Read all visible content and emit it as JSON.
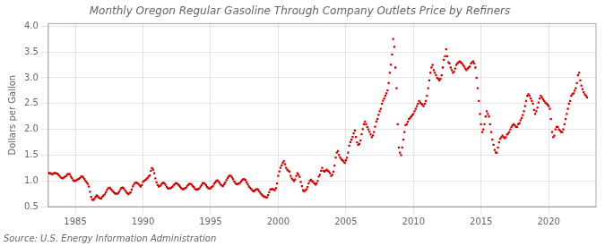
{
  "chart_data": {
    "type": "scatter",
    "title": "Monthly Oregon Regular Gasoline Through Company Outlets Price by Refiners",
    "ylabel": "Dollars per Gallon",
    "source": "Source: U.S. Energy Information Administration",
    "color": "#CC0000",
    "marker": "square",
    "grid": true,
    "xlim": [
      1983.0,
      2023.5
    ],
    "ylim": [
      0.5,
      4.05
    ],
    "xticks": [
      1985,
      1990,
      1995,
      2000,
      2005,
      2010,
      2015,
      2020
    ],
    "yticks": [
      0.5,
      {
        "value": 1.0,
        "label": "1.0"
      },
      1.5,
      {
        "value": 2.0,
        "label": "2.0"
      },
      2.5,
      {
        "value": 3.0,
        "label": "3.0"
      },
      3.5,
      {
        "value": 4.0,
        "label": "4.0"
      }
    ],
    "x": [
      1983,
      1983.0833333333333,
      1983.1666666666667,
      1983.25,
      1983.3333333333333,
      1983.4166666666667,
      1983.5,
      1983.5833333333333,
      1983.6666666666667,
      1983.75,
      1983.8333333333333,
      1983.9166666666667,
      1984,
      1984.0833333333333,
      1984.1666666666667,
      1984.25,
      1984.3333333333333,
      1984.4166666666667,
      1984.5,
      1984.5833333333333,
      1984.6666666666667,
      1984.75,
      1984.8333333333333,
      1984.9166666666667,
      1985,
      1985.0833333333333,
      1985.1666666666667,
      1985.25,
      1985.3333333333333,
      1985.4166666666667,
      1985.5,
      1985.5833333333333,
      1985.6666666666667,
      1985.75,
      1985.8333333333333,
      1985.9166666666667,
      1986,
      1986.0833333333333,
      1986.1666666666667,
      1986.25,
      1986.3333333333333,
      1986.4166666666667,
      1986.5,
      1986.5833333333333,
      1986.6666666666667,
      1986.75,
      1986.8333333333333,
      1986.9166666666667,
      1987,
      1987.0833333333333,
      1987.1666666666667,
      1987.25,
      1987.3333333333333,
      1987.4166666666667,
      1987.5,
      1987.5833333333333,
      1987.6666666666667,
      1987.75,
      1987.8333333333333,
      1987.9166666666667,
      1988,
      1988.0833333333333,
      1988.1666666666667,
      1988.25,
      1988.3333333333333,
      1988.4166666666667,
      1988.5,
      1988.5833333333333,
      1988.6666666666667,
      1988.75,
      1988.8333333333333,
      1988.9166666666667,
      1989,
      1989.0833333333333,
      1989.1666666666667,
      1989.25,
      1989.3333333333333,
      1989.4166666666667,
      1989.5,
      1989.5833333333333,
      1989.6666666666667,
      1989.75,
      1989.8333333333333,
      1989.9166666666667,
      1990,
      1990.0833333333333,
      1990.1666666666667,
      1990.25,
      1990.3333333333333,
      1990.4166666666667,
      1990.5,
      1990.5833333333333,
      1990.6666666666667,
      1990.75,
      1990.8333333333333,
      1990.9166666666667,
      1991,
      1991.0833333333333,
      1991.1666666666667,
      1991.25,
      1991.3333333333333,
      1991.4166666666667,
      1991.5,
      1991.5833333333333,
      1991.6666666666667,
      1991.75,
      1991.8333333333333,
      1991.9166666666667,
      1992,
      1992.0833333333333,
      1992.1666666666667,
      1992.25,
      1992.3333333333333,
      1992.4166666666667,
      1992.5,
      1992.5833333333333,
      1992.6666666666667,
      1992.75,
      1992.8333333333333,
      1992.9166666666667,
      1993,
      1993.0833333333333,
      1993.1666666666667,
      1993.25,
      1993.3333333333333,
      1993.4166666666667,
      1993.5,
      1993.5833333333333,
      1993.6666666666667,
      1993.75,
      1993.8333333333333,
      1993.9166666666667,
      1994,
      1994.0833333333333,
      1994.1666666666667,
      1994.25,
      1994.3333333333333,
      1994.4166666666667,
      1994.5,
      1994.5833333333333,
      1994.6666666666667,
      1994.75,
      1994.8333333333333,
      1994.9166666666667,
      1995,
      1995.0833333333333,
      1995.1666666666667,
      1995.25,
      1995.3333333333333,
      1995.4166666666667,
      1995.5,
      1995.5833333333333,
      1995.6666666666667,
      1995.75,
      1995.8333333333333,
      1995.9166666666667,
      1996,
      1996.0833333333333,
      1996.1666666666667,
      1996.25,
      1996.3333333333333,
      1996.4166666666667,
      1996.5,
      1996.5833333333333,
      1996.6666666666667,
      1996.75,
      1996.8333333333333,
      1996.9166666666667,
      1997,
      1997.0833333333333,
      1997.1666666666667,
      1997.25,
      1997.3333333333333,
      1997.4166666666667,
      1997.5,
      1997.5833333333333,
      1997.6666666666667,
      1997.75,
      1997.8333333333333,
      1997.9166666666667,
      1998,
      1998.0833333333333,
      1998.1666666666667,
      1998.25,
      1998.3333333333333,
      1998.4166666666667,
      1998.5,
      1998.5833333333333,
      1998.6666666666667,
      1998.75,
      1998.8333333333333,
      1998.9166666666667,
      1999,
      1999.0833333333333,
      1999.1666666666667,
      1999.25,
      1999.3333333333333,
      1999.4166666666667,
      1999.5,
      1999.5833333333333,
      1999.6666666666667,
      1999.75,
      1999.8333333333333,
      1999.9166666666667,
      2000,
      2000.0833333333333,
      2000.1666666666667,
      2000.25,
      2000.3333333333333,
      2000.4166666666667,
      2000.5,
      2000.5833333333333,
      2000.6666666666667,
      2000.75,
      2000.8333333333333,
      2000.9166666666667,
      2001,
      2001.0833333333333,
      2001.1666666666667,
      2001.25,
      2001.3333333333333,
      2001.4166666666667,
      2001.5,
      2001.5833333333333,
      2001.6666666666667,
      2001.75,
      2001.8333333333333,
      2001.9166666666667,
      2002,
      2002.0833333333333,
      2002.1666666666667,
      2002.25,
      2002.3333333333333,
      2002.4166666666667,
      2002.5,
      2002.5833333333333,
      2002.6666666666667,
      2002.75,
      2002.8333333333333,
      2002.9166666666667,
      2003,
      2003.0833333333333,
      2003.1666666666667,
      2003.25,
      2003.3333333333333,
      2003.4166666666667,
      2003.5,
      2003.5833333333333,
      2003.6666666666667,
      2003.75,
      2003.8333333333333,
      2003.9166666666667,
      2004,
      2004.0833333333333,
      2004.1666666666667,
      2004.25,
      2004.3333333333333,
      2004.4166666666667,
      2004.5,
      2004.5833333333333,
      2004.6666666666667,
      2004.75,
      2004.8333333333333,
      2004.9166666666667,
      2005,
      2005.0833333333333,
      2005.1666666666667,
      2005.25,
      2005.3333333333333,
      2005.4166666666667,
      2005.5,
      2005.5833333333333,
      2005.6666666666667,
      2005.75,
      2005.8333333333333,
      2005.9166666666667,
      2006,
      2006.0833333333333,
      2006.1666666666667,
      2006.25,
      2006.3333333333333,
      2006.4166666666667,
      2006.5,
      2006.5833333333333,
      2006.6666666666667,
      2006.75,
      2006.8333333333333,
      2006.9166666666667,
      2007,
      2007.0833333333333,
      2007.1666666666667,
      2007.25,
      2007.3333333333333,
      2007.4166666666667,
      2007.5,
      2007.5833333333333,
      2007.6666666666667,
      2007.75,
      2007.8333333333333,
      2007.9166666666667,
      2008,
      2008.0833333333333,
      2008.1666666666667,
      2008.25,
      2008.3333333333333,
      2008.4166666666667,
      2008.5,
      2008.5833333333333,
      2008.6666666666667,
      2008.75,
      2008.8333333333333,
      2008.9166666666667,
      2009,
      2009.0833333333333,
      2009.1666666666667,
      2009.25,
      2009.3333333333333,
      2009.4166666666667,
      2009.5,
      2009.5833333333333,
      2009.6666666666667,
      2009.75,
      2009.8333333333333,
      2009.9166666666667,
      2010,
      2010.0833333333333,
      2010.1666666666667,
      2010.25,
      2010.3333333333333,
      2010.4166666666667,
      2010.5,
      2010.5833333333333,
      2010.6666666666667,
      2010.75,
      2010.8333333333333,
      2010.9166666666667,
      2011,
      2011.0833333333333,
      2011.1666666666667,
      2011.25,
      2011.3333333333333,
      2011.4166666666667,
      2011.5,
      2011.5833333333333,
      2011.6666666666667,
      2011.75,
      2011.8333333333333,
      2011.9166666666667,
      2012,
      2012.0833333333333,
      2012.1666666666667,
      2012.25,
      2012.3333333333333,
      2012.4166666666667,
      2012.5,
      2012.5833333333333,
      2012.6666666666667,
      2012.75,
      2012.8333333333333,
      2012.9166666666667,
      2013,
      2013.0833333333333,
      2013.1666666666667,
      2013.25,
      2013.3333333333333,
      2013.4166666666667,
      2013.5,
      2013.5833333333333,
      2013.6666666666667,
      2013.75,
      2013.8333333333333,
      2013.9166666666667,
      2014,
      2014.0833333333333,
      2014.1666666666667,
      2014.25,
      2014.3333333333333,
      2014.4166666666667,
      2014.5,
      2014.5833333333333,
      2014.6666666666667,
      2014.75,
      2014.8333333333333,
      2014.9166666666667,
      2015,
      2015.0833333333333,
      2015.1666666666667,
      2015.25,
      2015.3333333333333,
      2015.4166666666667,
      2015.5,
      2015.5833333333333,
      2015.6666666666667,
      2015.75,
      2015.8333333333333,
      2015.9166666666667,
      2016,
      2016.0833333333333,
      2016.1666666666667,
      2016.25,
      2016.3333333333333,
      2016.4166666666667,
      2016.5,
      2016.5833333333333,
      2016.6666666666667,
      2016.75,
      2016.8333333333333,
      2016.9166666666667,
      2017,
      2017.0833333333333,
      2017.1666666666667,
      2017.25,
      2017.3333333333333,
      2017.4166666666667,
      2017.5,
      2017.5833333333333,
      2017.6666666666667,
      2017.75,
      2017.8333333333333,
      2017.9166666666667,
      2018,
      2018.0833333333333,
      2018.1666666666667,
      2018.25,
      2018.3333333333333,
      2018.4166666666667,
      2018.5,
      2018.5833333333333,
      2018.6666666666667,
      2018.75,
      2018.8333333333333,
      2018.9166666666667,
      2019,
      2019.0833333333333,
      2019.1666666666667,
      2019.25,
      2019.3333333333333,
      2019.4166666666667,
      2019.5,
      2019.5833333333333,
      2019.6666666666667,
      2019.75,
      2019.8333333333333,
      2019.9166666666667,
      2020,
      2020.0833333333333,
      2020.1666666666667,
      2020.25,
      2020.3333333333333,
      2020.4166666666667,
      2020.5,
      2020.5833333333333,
      2020.6666666666667,
      2020.75,
      2020.8333333333333,
      2020.9166666666667,
      2021,
      2021.0833333333333,
      2021.1666666666667,
      2021.25,
      2021.3333333333333,
      2021.4166666666667,
      2021.5,
      2021.5833333333333,
      2021.6666666666667,
      2021.75,
      2021.8333333333333,
      2021.9166666666667,
      2022,
      2022.0833333333333,
      2022.1666666666667,
      2022.25,
      2022.3333333333333,
      2022.4166666666667,
      2022.5,
      2022.5833333333333,
      2022.6666666666667,
      2022.75,
      2022.8333333333333
    ],
    "values": [
      1.157,
      1.143,
      1.149,
      1.132,
      1.131,
      1.148,
      1.152,
      1.145,
      1.138,
      1.119,
      1.097,
      1.065,
      1.056,
      1.05,
      1.065,
      1.085,
      1.098,
      1.128,
      1.135,
      1.125,
      1.085,
      1.055,
      1.013,
      0.995,
      1.003,
      1.013,
      1.025,
      1.038,
      1.055,
      1.078,
      1.088,
      1.068,
      1.035,
      1.002,
      0.97,
      0.942,
      0.888,
      0.788,
      0.69,
      0.638,
      0.628,
      0.655,
      0.695,
      0.718,
      0.698,
      0.675,
      0.66,
      0.658,
      0.695,
      0.715,
      0.738,
      0.775,
      0.82,
      0.852,
      0.868,
      0.858,
      0.83,
      0.8,
      0.778,
      0.76,
      0.748,
      0.748,
      0.762,
      0.792,
      0.835,
      0.862,
      0.872,
      0.852,
      0.82,
      0.79,
      0.762,
      0.742,
      0.758,
      0.778,
      0.832,
      0.892,
      0.93,
      0.962,
      0.968,
      0.958,
      0.94,
      0.91,
      0.888,
      0.918,
      0.978,
      1.002,
      1.012,
      1.032,
      1.052,
      1.082,
      1.105,
      1.198,
      1.248,
      1.218,
      1.148,
      1.048,
      0.972,
      0.918,
      0.888,
      0.9,
      0.922,
      0.952,
      0.962,
      0.952,
      0.922,
      0.882,
      0.858,
      0.848,
      0.858,
      0.868,
      0.88,
      0.91,
      0.932,
      0.952,
      0.952,
      0.93,
      0.912,
      0.882,
      0.858,
      0.842,
      0.842,
      0.852,
      0.862,
      0.892,
      0.92,
      0.942,
      0.942,
      0.93,
      0.902,
      0.878,
      0.852,
      0.832,
      0.832,
      0.842,
      0.852,
      0.89,
      0.92,
      0.952,
      0.958,
      0.94,
      0.912,
      0.878,
      0.858,
      0.848,
      0.858,
      0.878,
      0.898,
      0.94,
      0.968,
      0.998,
      1.008,
      0.988,
      0.958,
      0.928,
      0.908,
      0.898,
      0.938,
      0.968,
      1.012,
      1.052,
      1.082,
      1.102,
      1.098,
      1.068,
      1.03,
      0.99,
      0.958,
      0.938,
      0.938,
      0.948,
      0.958,
      0.988,
      1.012,
      1.032,
      1.03,
      1.012,
      0.97,
      0.93,
      0.892,
      0.868,
      0.842,
      0.82,
      0.798,
      0.808,
      0.828,
      0.842,
      0.832,
      0.8,
      0.772,
      0.742,
      0.718,
      0.698,
      0.692,
      0.682,
      0.68,
      0.722,
      0.778,
      0.832,
      0.84,
      0.838,
      0.838,
      0.82,
      0.858,
      0.948,
      1.098,
      1.182,
      1.252,
      1.302,
      1.348,
      1.382,
      1.322,
      1.252,
      1.218,
      1.198,
      1.178,
      1.098,
      1.048,
      1.022,
      0.998,
      1.028,
      1.098,
      1.148,
      1.118,
      1.078,
      0.978,
      0.898,
      0.818,
      0.798,
      0.818,
      0.838,
      0.878,
      0.948,
      0.998,
      1.022,
      0.998,
      0.978,
      0.952,
      0.928,
      0.948,
      0.998,
      1.082,
      1.118,
      1.198,
      1.252,
      1.198,
      1.178,
      1.198,
      1.218,
      1.198,
      1.178,
      1.148,
      1.098,
      1.118,
      1.178,
      1.298,
      1.452,
      1.548,
      1.578,
      1.502,
      1.452,
      1.418,
      1.398,
      1.378,
      1.348,
      1.398,
      1.448,
      1.548,
      1.682,
      1.752,
      1.798,
      1.852,
      1.92,
      1.978,
      1.852,
      1.748,
      1.698,
      1.718,
      1.782,
      1.902,
      2.002,
      2.098,
      2.148,
      2.098,
      2.048,
      1.998,
      1.952,
      1.898,
      1.848,
      1.882,
      1.948,
      2.052,
      2.152,
      2.198,
      2.282,
      2.348,
      2.398,
      2.498,
      2.552,
      2.598,
      2.648,
      2.698,
      2.752,
      2.898,
      3.098,
      3.252,
      3.452,
      3.752,
      3.598,
      3.198,
      2.798,
      2.098,
      1.648,
      1.548,
      1.498,
      1.648,
      1.798,
      1.948,
      2.082,
      2.098,
      2.148,
      2.198,
      2.218,
      2.248,
      2.278,
      2.298,
      2.352,
      2.398,
      2.448,
      2.498,
      2.548,
      2.518,
      2.498,
      2.478,
      2.448,
      2.498,
      2.548,
      2.648,
      2.798,
      2.948,
      3.098,
      3.198,
      3.248,
      3.148,
      3.098,
      3.048,
      2.998,
      2.978,
      2.948,
      2.978,
      3.048,
      3.198,
      3.348,
      3.418,
      3.552,
      3.418,
      3.298,
      3.278,
      3.198,
      3.148,
      3.098,
      3.118,
      3.178,
      3.248,
      3.278,
      3.298,
      3.318,
      3.298,
      3.278,
      3.248,
      3.218,
      3.178,
      3.148,
      3.178,
      3.198,
      3.218,
      3.278,
      3.298,
      3.318,
      3.278,
      3.198,
      2.998,
      2.798,
      2.548,
      2.298,
      2.098,
      1.948,
      1.998,
      2.098,
      2.248,
      2.348,
      2.298,
      2.248,
      2.098,
      1.948,
      1.798,
      1.698,
      1.598,
      1.548,
      1.548,
      1.648,
      1.748,
      1.818,
      1.848,
      1.878,
      1.848,
      1.828,
      1.848,
      1.898,
      1.918,
      1.948,
      1.998,
      2.048,
      2.078,
      2.098,
      2.078,
      2.048,
      2.048,
      2.098,
      2.118,
      2.178,
      2.218,
      2.278,
      2.348,
      2.448,
      2.548,
      2.648,
      2.678,
      2.648,
      2.598,
      2.548,
      2.498,
      2.378,
      2.298,
      2.348,
      2.418,
      2.518,
      2.598,
      2.648,
      2.618,
      2.578,
      2.548,
      2.518,
      2.498,
      2.478,
      2.448,
      2.398,
      2.198,
      1.948,
      1.848,
      1.878,
      1.998,
      2.048,
      2.048,
      1.998,
      1.978,
      1.948,
      1.948,
      1.998,
      2.098,
      2.198,
      2.298,
      2.398,
      2.498,
      2.548,
      2.648,
      2.678,
      2.698,
      2.748,
      2.798,
      2.898,
      3.048,
      3.098,
      2.948,
      2.848,
      2.778,
      2.718,
      2.678,
      2.648,
      2.618
    ]
  }
}
